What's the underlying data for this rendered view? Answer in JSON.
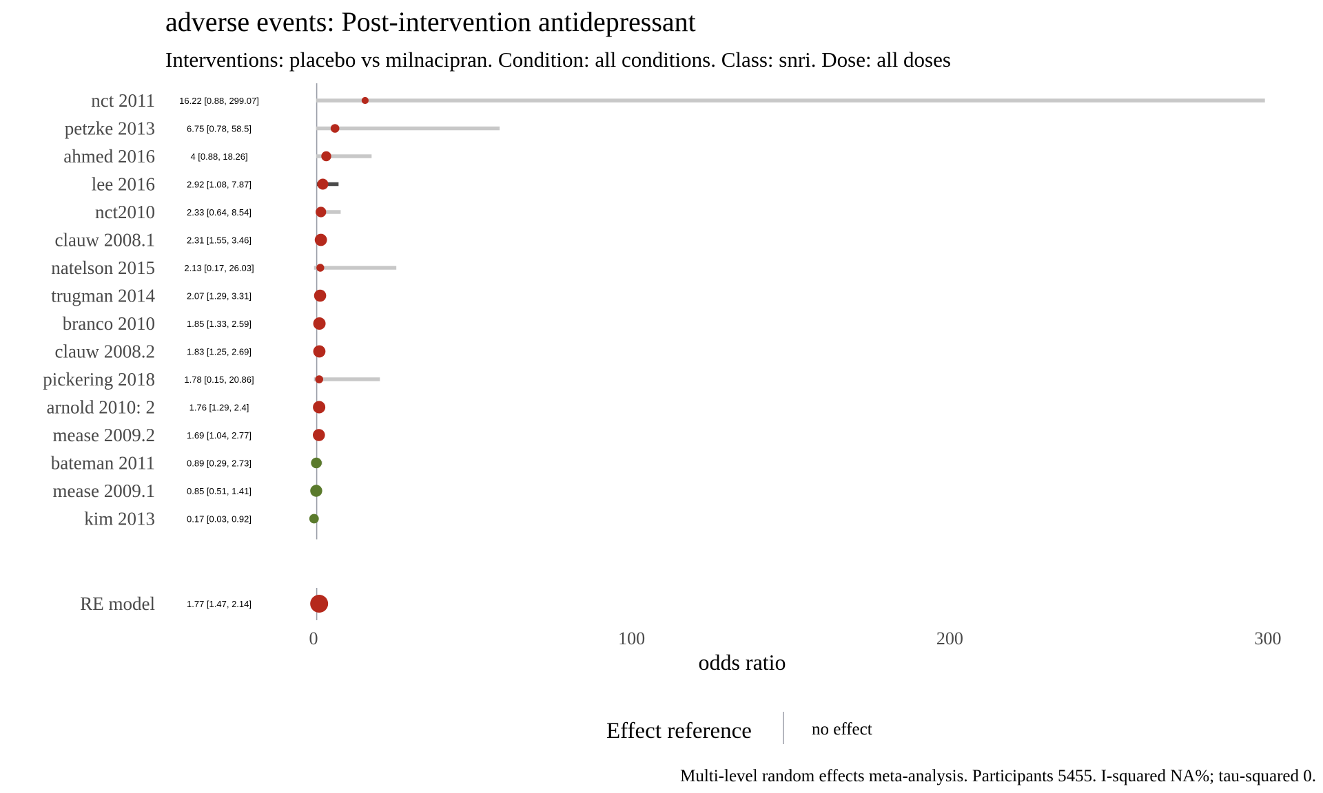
{
  "chart_data": {
    "type": "forest",
    "title": "adverse events: Post-intervention antidepressant",
    "subtitle": "Interventions: placebo vs milnacipran. Condition: all conditions. Class: snri. Dose: all doses",
    "xlabel": "odds ratio",
    "xlim": [
      0,
      300
    ],
    "xticks": [
      0,
      100,
      200,
      300
    ],
    "reference_line": 1,
    "grid": false,
    "studies": [
      {
        "label": "nct 2011",
        "est": 16.22,
        "lo": 0.88,
        "hi": 299.07,
        "ci_text": "16.22 [0.88, 299.07]",
        "significant": false
      },
      {
        "label": "petzke 2013",
        "est": 6.75,
        "lo": 0.78,
        "hi": 58.5,
        "ci_text": "6.75 [0.78, 58.5]",
        "significant": false
      },
      {
        "label": "ahmed 2016",
        "est": 4,
        "lo": 0.88,
        "hi": 18.26,
        "ci_text": "4 [0.88, 18.26]",
        "significant": false
      },
      {
        "label": "lee 2016",
        "est": 2.92,
        "lo": 1.08,
        "hi": 7.87,
        "ci_text": "2.92 [1.08, 7.87]",
        "significant": true
      },
      {
        "label": "nct2010",
        "est": 2.33,
        "lo": 0.64,
        "hi": 8.54,
        "ci_text": "2.33 [0.64, 8.54]",
        "significant": false
      },
      {
        "label": "clauw 2008.1",
        "est": 2.31,
        "lo": 1.55,
        "hi": 3.46,
        "ci_text": "2.31 [1.55, 3.46]",
        "significant": true
      },
      {
        "label": "natelson 2015",
        "est": 2.13,
        "lo": 0.17,
        "hi": 26.03,
        "ci_text": "2.13 [0.17, 26.03]",
        "significant": false
      },
      {
        "label": "trugman 2014",
        "est": 2.07,
        "lo": 1.29,
        "hi": 3.31,
        "ci_text": "2.07 [1.29, 3.31]",
        "significant": true
      },
      {
        "label": "branco 2010",
        "est": 1.85,
        "lo": 1.33,
        "hi": 2.59,
        "ci_text": "1.85 [1.33, 2.59]",
        "significant": true
      },
      {
        "label": "clauw 2008.2",
        "est": 1.83,
        "lo": 1.25,
        "hi": 2.69,
        "ci_text": "1.83 [1.25, 2.69]",
        "significant": true
      },
      {
        "label": "pickering 2018",
        "est": 1.78,
        "lo": 0.15,
        "hi": 20.86,
        "ci_text": "1.78 [0.15, 20.86]",
        "significant": false
      },
      {
        "label": "arnold 2010: 2",
        "est": 1.76,
        "lo": 1.29,
        "hi": 2.4,
        "ci_text": "1.76 [1.29, 2.4]",
        "significant": true
      },
      {
        "label": "mease 2009.2",
        "est": 1.69,
        "lo": 1.04,
        "hi": 2.77,
        "ci_text": "1.69 [1.04, 2.77]",
        "significant": true
      },
      {
        "label": "bateman 2011",
        "est": 0.89,
        "lo": 0.29,
        "hi": 2.73,
        "ci_text": "0.89 [0.29, 2.73]",
        "significant": false
      },
      {
        "label": "mease 2009.1",
        "est": 0.85,
        "lo": 0.51,
        "hi": 1.41,
        "ci_text": "0.85 [0.51, 1.41]",
        "significant": false
      },
      {
        "label": "kim 2013",
        "est": 0.17,
        "lo": 0.03,
        "hi": 0.92,
        "ci_text": "0.17 [0.03, 0.92]",
        "significant": true
      }
    ],
    "summary": {
      "label": "RE model",
      "est": 1.77,
      "lo": 1.47,
      "hi": 2.14,
      "ci_text": "1.77 [1.47, 2.14]"
    },
    "legend": {
      "title": "Effect reference",
      "label": "no effect"
    },
    "caption": "Multi-level random effects meta-analysis. Participants 5455. I-squared NA%; tau-squared 0."
  },
  "colors": {
    "harm_point": "#b5291c",
    "benefit_point": "#5a7a2c",
    "ci_nonsignificant": "#c8c8c8",
    "ci_significant": "#4a4a4a",
    "reference_line": "#9a9ea8"
  }
}
